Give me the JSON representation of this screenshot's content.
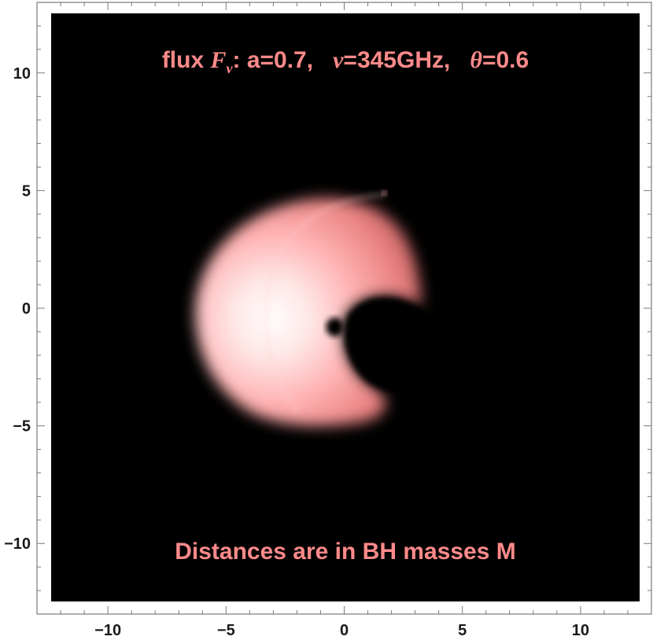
{
  "chart_data": {
    "type": "heatmap",
    "title_parts": {
      "prefix": "flux ",
      "flux_symbol": "F",
      "flux_subscript": "ν",
      "spin_part": ": a=0.7,",
      "nu_symbol": "ν",
      "nu_part": "=345GHz,",
      "theta_symbol": "θ",
      "theta_part": "=0.6"
    },
    "annotation": "Distances are in BH masses M",
    "xlim": [
      -13,
      13
    ],
    "ylim": [
      -13,
      13
    ],
    "x_ticks": [
      -10,
      -5,
      0,
      5,
      10
    ],
    "y_ticks": [
      -10,
      -5,
      0,
      5,
      10
    ],
    "tick_labels": {
      "-10": "−10",
      "-5": "−5",
      "0": "0",
      "5": "5",
      "10": "10"
    },
    "colors": {
      "background": "#000000",
      "emission": "#ff9090",
      "peak": "#ffffff",
      "text": "#ff8a8a"
    },
    "features": {
      "shadow_center": [
        -0.4,
        -0.8
      ],
      "ring_center": [
        -0.6,
        -0.5
      ],
      "peak_brightness_at": [
        -3.0,
        -0.5
      ]
    }
  }
}
